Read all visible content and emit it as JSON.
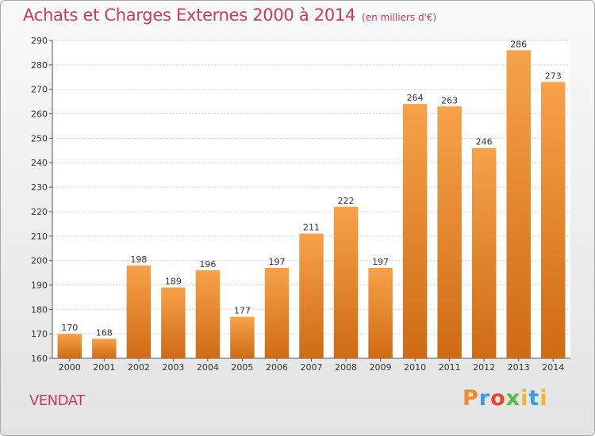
{
  "header": {
    "title": "Achats et Charges Externes 2000 à 2014",
    "subtitle": "(en milliers d'€)"
  },
  "footer": {
    "town": "VENDAT",
    "logo": "Proxiti"
  },
  "colors": {
    "title": "#c83862",
    "bar_light": "#f6a24a",
    "bar_dark": "#cf6b14",
    "grid": "#cfcfcf"
  },
  "chart_data": {
    "type": "bar",
    "title": "Achats et Charges Externes 2000 à 2014",
    "subtitle": "(en milliers d'€)",
    "xlabel": "",
    "ylabel": "",
    "categories": [
      "2000",
      "2001",
      "2002",
      "2003",
      "2004",
      "2005",
      "2006",
      "2007",
      "2008",
      "2009",
      "2010",
      "2011",
      "2012",
      "2013",
      "2014"
    ],
    "values": [
      170,
      168,
      198,
      189,
      196,
      177,
      197,
      211,
      222,
      197,
      264,
      263,
      246,
      286,
      273
    ],
    "ylim": [
      160,
      290
    ],
    "yticks": [
      160,
      170,
      180,
      190,
      200,
      210,
      220,
      230,
      240,
      250,
      260,
      270,
      280,
      290
    ],
    "grid": true,
    "data_labels": true
  }
}
